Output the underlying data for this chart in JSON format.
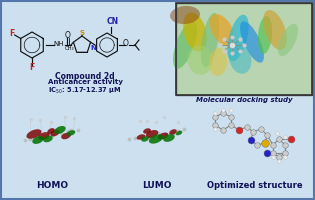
{
  "background_color": "#cce0f0",
  "border_color": "#5577aa",
  "text_color": "#111155",
  "figsize": [
    3.15,
    2.0
  ],
  "dpi": 100,
  "panels": {
    "chemical_structure": {
      "label_compound": "Compound 2d",
      "label_activity": "Anticancer activity",
      "label_ic50": "IC$_{50}$: 5.17-12.37 μM"
    },
    "docking": {
      "label": "Molecular docking study"
    },
    "homo": {
      "label": "HOMO"
    },
    "lumo": {
      "label": "LUMO"
    },
    "optimized": {
      "label": "Optimized structure"
    }
  }
}
